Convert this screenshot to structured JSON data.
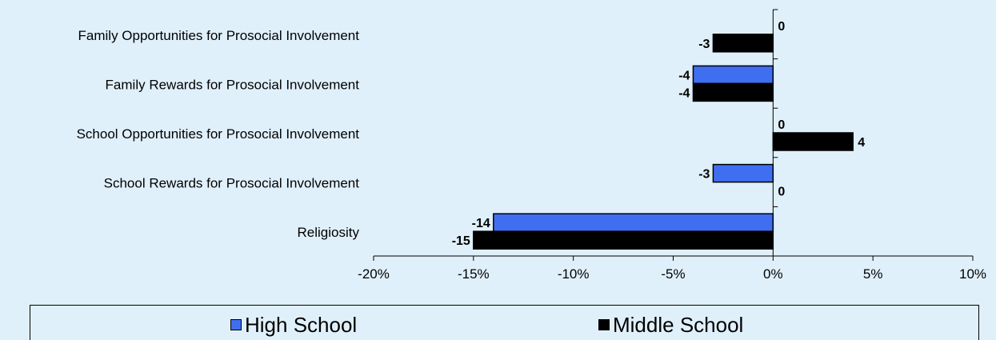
{
  "colors": {
    "high_school": "#3f6ff0",
    "middle_school": "#000000",
    "background": "#e0f0fb"
  },
  "chart_data": {
    "type": "bar",
    "orientation": "horizontal",
    "categories": [
      "Family Opportunities for Prosocial Involvement",
      "Family Rewards for Prosocial Involvement",
      "School Opportunities for Prosocial Involvement",
      "School Rewards for Prosocial Involvement",
      "Religiosity"
    ],
    "series": [
      {
        "name": "High School",
        "values": [
          0,
          -4,
          0,
          -3,
          -14
        ],
        "labels": [
          "0",
          "-4",
          "0",
          "-3",
          "-14"
        ]
      },
      {
        "name": "Middle School",
        "values": [
          -3,
          -4,
          4,
          0,
          -15
        ],
        "labels": [
          "-3",
          "-4",
          "4",
          "0",
          "-15"
        ]
      }
    ],
    "xlim": [
      -20,
      10
    ],
    "xticks": [
      -20,
      -15,
      -10,
      -5,
      0,
      5,
      10
    ],
    "xtick_labels": [
      "-20%",
      "-15%",
      "-10%",
      "-5%",
      "0%",
      "5%",
      "10%"
    ],
    "legend_position": "bottom",
    "grid": false
  }
}
